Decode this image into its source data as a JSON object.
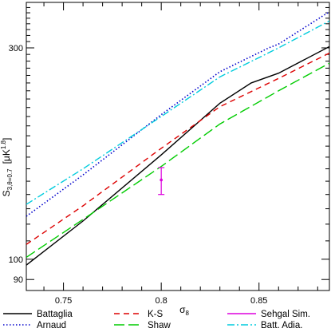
{
  "chart_data": {
    "type": "line",
    "title": "",
    "xlabel": "σ8",
    "ylabel": "S3,θ=0.7 [μK^1.8]",
    "x_axis_label": {
      "main": "σ",
      "sub": "8"
    },
    "y_axis_label": {
      "main": "S",
      "sub": "3,θ=0.7",
      "unit_open": "[μK",
      "unit_sup": "1.8",
      "unit_close": "]"
    },
    "xlim": [
      0.731,
      0.886
    ],
    "ylim": [
      85,
      380
    ],
    "yscale": "log",
    "x_ticks_major": [
      0.75,
      0.8,
      0.85
    ],
    "x_tick_labels": [
      "0.75",
      "0.8",
      "0.85"
    ],
    "y_ticks_labeled": [
      90,
      100,
      300
    ],
    "y_tick_labels": [
      "90",
      "100",
      "300"
    ],
    "series": [
      {
        "name": "Battaglia",
        "color": "#000000",
        "dash": "solid",
        "x": [
          0.731,
          0.76,
          0.8,
          0.83,
          0.846,
          0.86,
          0.886
        ],
        "y": [
          97,
          122,
          172,
          225,
          250,
          263,
          302
        ]
      },
      {
        "name": "Arnaud",
        "color": "#0000cc",
        "dash": "dotted",
        "x": [
          0.731,
          0.76,
          0.8,
          0.83,
          0.855,
          0.86,
          0.886
        ],
        "y": [
          125,
          155,
          212,
          265,
          300,
          306,
          362
        ]
      },
      {
        "name": "K-S",
        "color": "#dd0000",
        "dash": "dashed",
        "x": [
          0.731,
          0.76,
          0.8,
          0.83,
          0.86,
          0.886
        ],
        "y": [
          108,
          132,
          178,
          221,
          256,
          292
        ]
      },
      {
        "name": "Shaw",
        "color": "#00cc00",
        "dash": "longdash",
        "x": [
          0.731,
          0.76,
          0.8,
          0.83,
          0.86,
          0.886
        ],
        "y": [
          101,
          123,
          162,
          202,
          240,
          277
        ]
      },
      {
        "name": "Batt. Adia.",
        "color": "#00ccdd",
        "dash": "dashdot",
        "x": [
          0.731,
          0.76,
          0.8,
          0.83,
          0.86,
          0.886
        ],
        "y": [
          133,
          160,
          210,
          258,
          300,
          345
        ]
      }
    ],
    "points": [
      {
        "name": "Sehgal Sim.",
        "color": "#dd00dd",
        "x": 0.8,
        "y": 151,
        "y_err_low": 140,
        "y_err_high": 161
      }
    ],
    "legend": {
      "placement": "bottom",
      "entries": [
        {
          "label": "Battaglia",
          "color": "#000000",
          "dash": "solid"
        },
        {
          "label": "K-S",
          "color": "#dd0000",
          "dash": "dashed"
        },
        {
          "label": "Sehgal Sim.",
          "color": "#dd00dd",
          "dash": "solid"
        },
        {
          "label": "Arnaud",
          "color": "#0000cc",
          "dash": "dotted"
        },
        {
          "label": "Shaw",
          "color": "#00cc00",
          "dash": "longdash"
        },
        {
          "label": "Batt. Adia.",
          "color": "#00ccdd",
          "dash": "dashdot"
        }
      ]
    }
  }
}
